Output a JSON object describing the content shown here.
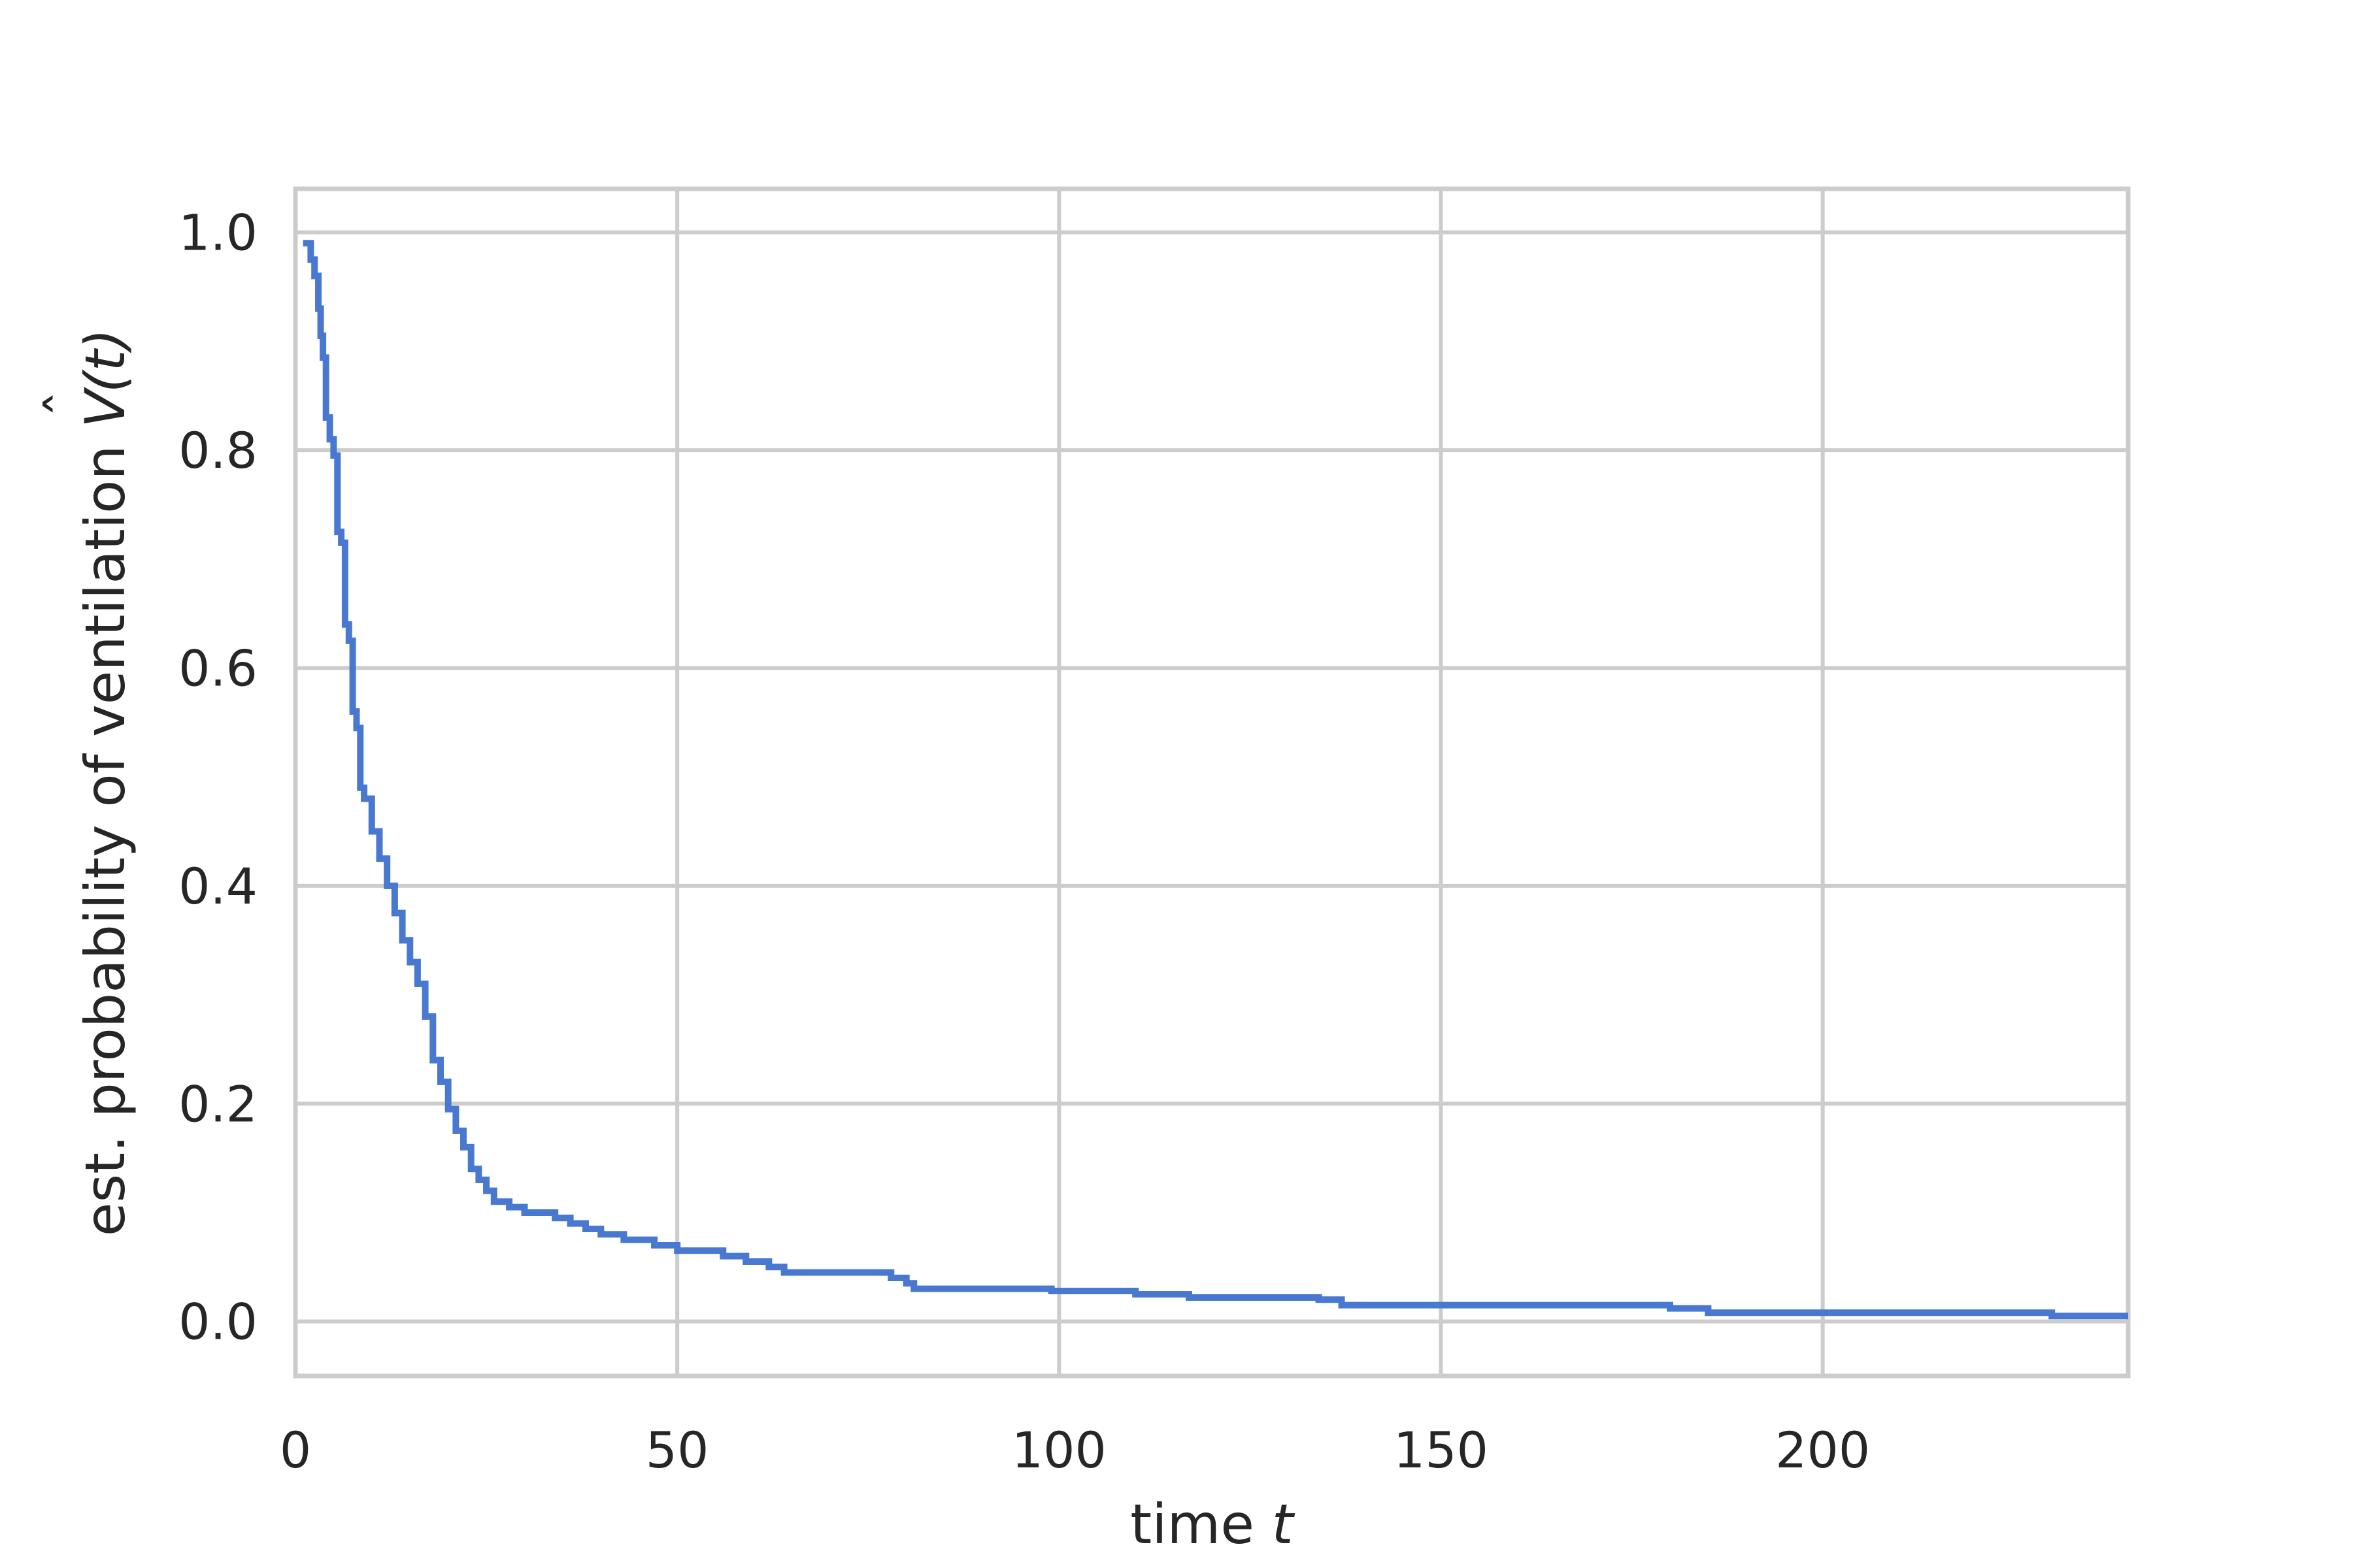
{
  "chart_data": {
    "type": "line",
    "title": "",
    "xlabel": "time ",
    "xlabel_var": "t",
    "ylabel": "est. probability of ventilation ",
    "ylabel_func": "V",
    "ylabel_hat": "ˆ",
    "ylabel_arg": "(t)",
    "xlim": [
      0,
      240
    ],
    "ylim": [
      -0.05,
      1.04
    ],
    "x_ticks": [
      0,
      50,
      100,
      150,
      200
    ],
    "x_tick_labels": [
      "0",
      "50",
      "100",
      "150",
      "200"
    ],
    "y_ticks": [
      0.0,
      0.2,
      0.4,
      0.6,
      0.8,
      1.0
    ],
    "y_tick_labels": [
      "0.0",
      "0.2",
      "0.4",
      "0.6",
      "0.8",
      "1.0"
    ],
    "grid": true,
    "line_style": "step",
    "series": [
      {
        "color": "#4878d0",
        "x": [
          1,
          2,
          2.5,
          3,
          3.3,
          3.6,
          4,
          4.5,
          5,
          5.5,
          6,
          6.5,
          7,
          7.5,
          8,
          8.5,
          9,
          10,
          11,
          12,
          13,
          14,
          15,
          16,
          17,
          18,
          19,
          20,
          21,
          22,
          23,
          24,
          25,
          26,
          28,
          30,
          34,
          36,
          38,
          40,
          43,
          47,
          50,
          56,
          59,
          62,
          64,
          66,
          78,
          80,
          81,
          99,
          110,
          117,
          134,
          137,
          180,
          185,
          230,
          240
        ],
        "y": [
          0.99,
          0.975,
          0.96,
          0.93,
          0.905,
          0.885,
          0.83,
          0.81,
          0.795,
          0.725,
          0.715,
          0.64,
          0.625,
          0.56,
          0.545,
          0.49,
          0.48,
          0.45,
          0.425,
          0.4,
          0.375,
          0.35,
          0.33,
          0.31,
          0.28,
          0.24,
          0.22,
          0.195,
          0.175,
          0.16,
          0.14,
          0.13,
          0.12,
          0.11,
          0.105,
          0.1,
          0.095,
          0.09,
          0.085,
          0.08,
          0.075,
          0.07,
          0.065,
          0.06,
          0.055,
          0.05,
          0.045,
          0.045,
          0.04,
          0.035,
          0.03,
          0.028,
          0.025,
          0.022,
          0.02,
          0.015,
          0.012,
          0.008,
          0.005,
          0.005
        ]
      }
    ]
  }
}
